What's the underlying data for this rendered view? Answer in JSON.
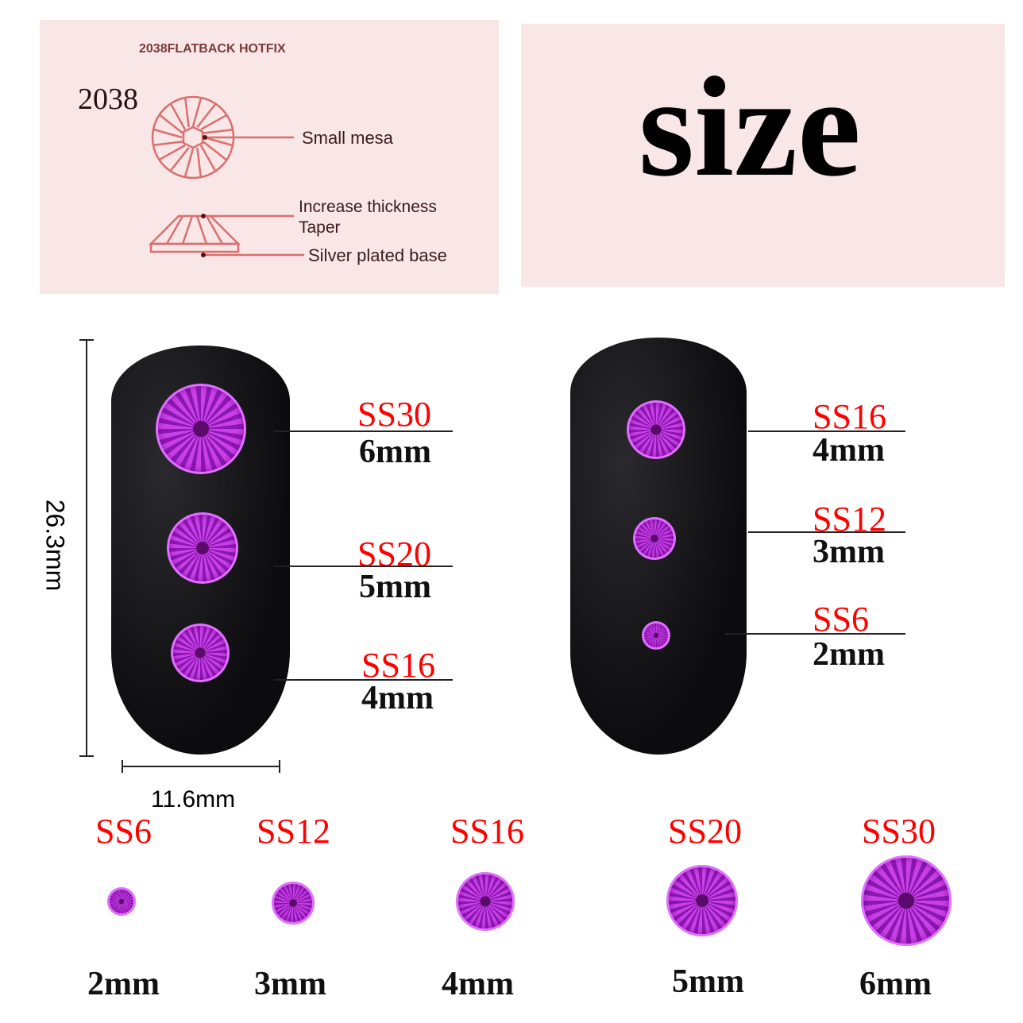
{
  "diagram": {
    "header": "2038FLATBACK HOTFIX",
    "model": "2038",
    "labels": [
      "Small mesa",
      "Increase thickness",
      "Taper",
      "Silver plated base"
    ],
    "line_color": "#d9706f"
  },
  "title": "size",
  "dimensions": {
    "height": "26.3mm",
    "width": "11.6mm"
  },
  "left_nail": [
    {
      "ss": "SS30",
      "mm": "6mm"
    },
    {
      "ss": "SS20",
      "mm": "5mm"
    },
    {
      "ss": "SS16",
      "mm": "4mm"
    }
  ],
  "right_nail": [
    {
      "ss": "SS16",
      "mm": "4mm"
    },
    {
      "ss": "SS12",
      "mm": "3mm"
    },
    {
      "ss": "SS6",
      "mm": "2mm"
    }
  ],
  "size_row": [
    {
      "ss": "SS6",
      "mm": "2mm"
    },
    {
      "ss": "SS12",
      "mm": "3mm"
    },
    {
      "ss": "SS16",
      "mm": "4mm"
    },
    {
      "ss": "SS20",
      "mm": "5mm"
    },
    {
      "ss": "SS30",
      "mm": "6mm"
    }
  ],
  "colors": {
    "label_red": "#ff0000",
    "gem_purple": "#b030d0",
    "panel_pink": "#f9e6e6"
  }
}
